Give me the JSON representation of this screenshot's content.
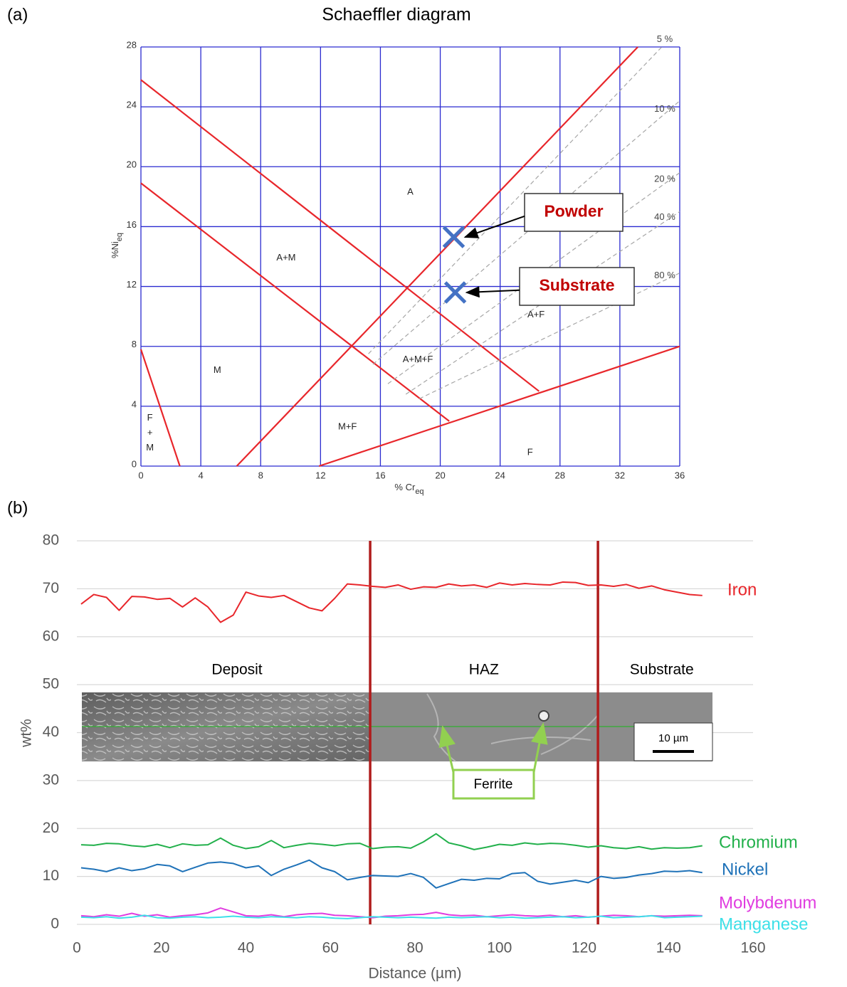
{
  "chart_data": [
    {
      "type": "line",
      "panel": "(a)",
      "title": "Schaeffler diagram",
      "x_label": "% Cr",
      "x_label_sub": "eq",
      "y_label": "%Ni",
      "y_label_sub": "eq",
      "xlim": [
        0,
        36
      ],
      "ylim": [
        0,
        28
      ],
      "xticks": [
        0,
        4,
        8,
        12,
        16,
        20,
        24,
        28,
        32,
        36
      ],
      "yticks": [
        0,
        4,
        8,
        12,
        16,
        20,
        24,
        28
      ],
      "grid": "both",
      "grid_color": "#2a2ad0",
      "series": [
        {
          "color": "#e8262b",
          "x": [
            0,
            26.6
          ],
          "values": [
            25.8,
            5.0
          ]
        },
        {
          "color": "#e8262b",
          "x": [
            0,
            20.6
          ],
          "values": [
            18.9,
            3.0
          ]
        },
        {
          "color": "#e8262b",
          "x": [
            6.4,
            33.2
          ],
          "values": [
            0,
            28
          ]
        },
        {
          "color": "#e8262b",
          "x": [
            11.9,
            36
          ],
          "values": [
            0,
            8.0
          ]
        },
        {
          "color": "#e8262b",
          "x": [
            0,
            2.6
          ],
          "values": [
            7.8,
            0
          ]
        },
        {
          "name": "5 %",
          "color": "#a6a6a6",
          "dash": true,
          "x": [
            15.2,
            34.8
          ],
          "values": [
            7.5,
            28
          ]
        },
        {
          "name": "10 %",
          "color": "#a6a6a6",
          "dash": true,
          "x": [
            15.5,
            36
          ],
          "values": [
            6.8,
            24.4
          ]
        },
        {
          "name": "20 %",
          "color": "#a6a6a6",
          "dash": true,
          "x": [
            16.5,
            36
          ],
          "values": [
            5.5,
            19.6
          ]
        },
        {
          "name": "40 %",
          "color": "#a6a6a6",
          "dash": true,
          "x": [
            17.7,
            36
          ],
          "values": [
            4.8,
            17.0
          ]
        },
        {
          "name": "80 %",
          "color": "#a6a6a6",
          "dash": true,
          "x": [
            18.6,
            36
          ],
          "values": [
            4.5,
            12.9
          ]
        }
      ],
      "points": [
        {
          "name": "Powder",
          "x": 20.9,
          "y": 15.3
        },
        {
          "name": "Substrate",
          "x": 21.0,
          "y": 11.6
        }
      ],
      "point_color": "#4472c4",
      "annotations": [
        {
          "text": "A",
          "x": 18.0,
          "y": 18.3
        },
        {
          "text": "A+M",
          "x": 9.7,
          "y": 13.9
        },
        {
          "text": "M",
          "x": 5.1,
          "y": 6.4
        },
        {
          "text": "F",
          "x": 0.6,
          "y": 3.2
        },
        {
          "text": "+",
          "x": 0.6,
          "y": 2.2
        },
        {
          "text": "M",
          "x": 0.6,
          "y": 1.2
        },
        {
          "text": "M+F",
          "x": 13.8,
          "y": 2.6
        },
        {
          "text": "A+M+F",
          "x": 18.5,
          "y": 7.1
        },
        {
          "text": "A+F",
          "x": 26.4,
          "y": 10.1
        },
        {
          "text": "F",
          "x": 26.0,
          "y": 0.9
        }
      ]
    },
    {
      "type": "line",
      "panel": "(b)",
      "x_label": "Distance (µm)",
      "y_label": "wt%",
      "xlim": [
        0,
        160
      ],
      "ylim": [
        0,
        80
      ],
      "xticks": [
        0,
        20,
        40,
        60,
        80,
        100,
        120,
        140,
        160
      ],
      "yticks": [
        0,
        10,
        20,
        30,
        40,
        50,
        60,
        70,
        80
      ],
      "grid": "y",
      "grid_color": "#d9d9d9",
      "x": [
        1,
        4,
        7,
        10,
        13,
        16,
        19,
        22,
        25,
        28,
        31,
        34,
        37,
        40,
        43,
        46,
        49,
        52,
        55,
        58,
        61,
        64,
        67,
        70,
        73,
        76,
        79,
        82,
        85,
        88,
        91,
        94,
        97,
        100,
        103,
        106,
        109,
        112,
        115,
        118,
        121,
        124,
        127,
        130,
        133,
        136,
        139,
        142,
        145,
        148
      ],
      "series": [
        {
          "name": "Iron",
          "color": "#e8262b",
          "values": [
            66.8,
            68.8,
            68.2,
            65.5,
            68.4,
            68.3,
            67.8,
            68.0,
            66.2,
            68.1,
            66.2,
            63.0,
            64.5,
            69.3,
            68.5,
            68.2,
            68.6,
            67.3,
            66.0,
            65.4,
            68.0,
            71.0,
            70.8,
            70.5,
            70.3,
            70.8,
            69.9,
            70.4,
            70.3,
            71.0,
            70.6,
            70.8,
            70.3,
            71.2,
            70.8,
            71.1,
            70.9,
            70.8,
            71.4,
            71.3,
            70.7,
            70.8,
            70.5,
            70.9,
            70.1,
            70.6,
            69.8,
            69.3,
            68.8,
            68.6
          ]
        },
        {
          "name": "Chromium",
          "color": "#22b04b",
          "values": [
            16.6,
            16.5,
            16.9,
            16.8,
            16.4,
            16.2,
            16.7,
            16.0,
            16.8,
            16.5,
            16.6,
            18.0,
            16.5,
            15.8,
            16.2,
            17.5,
            16.0,
            16.5,
            16.9,
            16.7,
            16.4,
            16.8,
            16.9,
            15.8,
            16.1,
            16.2,
            15.9,
            17.2,
            18.9,
            17.0,
            16.4,
            15.6,
            16.1,
            16.7,
            16.5,
            17.0,
            16.7,
            16.9,
            16.8,
            16.5,
            16.1,
            16.4,
            16.0,
            15.8,
            16.2,
            15.7,
            16.0,
            15.9,
            16.0,
            16.4
          ]
        },
        {
          "name": "Nickel",
          "color": "#1f72b8",
          "values": [
            11.8,
            11.5,
            11.0,
            11.8,
            11.2,
            11.6,
            12.5,
            12.2,
            11.0,
            11.9,
            12.8,
            13.0,
            12.7,
            11.8,
            12.2,
            10.2,
            11.5,
            12.4,
            13.4,
            11.8,
            11.0,
            9.3,
            9.8,
            10.2,
            10.1,
            10.0,
            10.6,
            9.8,
            7.6,
            8.5,
            9.4,
            9.2,
            9.6,
            9.5,
            10.6,
            10.8,
            9.0,
            8.4,
            8.8,
            9.2,
            8.7,
            10.0,
            9.6,
            9.8,
            10.3,
            10.6,
            11.1,
            11.0,
            11.2,
            10.8
          ]
        },
        {
          "name": "Molybdenum",
          "color": "#e03ce0",
          "values": [
            1.8,
            1.6,
            2.0,
            1.7,
            2.3,
            1.7,
            2.0,
            1.5,
            1.8,
            2.0,
            2.4,
            3.4,
            2.6,
            1.8,
            1.7,
            2.0,
            1.6,
            2.0,
            2.2,
            2.3,
            1.9,
            1.8,
            1.6,
            1.4,
            1.7,
            1.8,
            2.0,
            2.1,
            2.5,
            2.0,
            1.8,
            1.9,
            1.6,
            1.8,
            2.0,
            1.8,
            1.7,
            1.9,
            1.6,
            1.8,
            1.5,
            1.7,
            1.9,
            1.8,
            1.6,
            1.8,
            1.7,
            1.8,
            1.9,
            1.8
          ]
        },
        {
          "name": "Manganese",
          "color": "#3de0e8",
          "values": [
            1.5,
            1.4,
            1.6,
            1.3,
            1.5,
            1.9,
            1.4,
            1.3,
            1.5,
            1.6,
            1.4,
            1.5,
            1.7,
            1.5,
            1.4,
            1.6,
            1.5,
            1.4,
            1.6,
            1.5,
            1.3,
            1.2,
            1.4,
            1.6,
            1.5,
            1.4,
            1.5,
            1.4,
            1.3,
            1.5,
            1.4,
            1.5,
            1.6,
            1.4,
            1.5,
            1.3,
            1.4,
            1.5,
            1.6,
            1.4,
            1.5,
            1.7,
            1.4,
            1.5,
            1.6,
            1.8,
            1.4,
            1.5,
            1.6,
            1.7
          ]
        }
      ],
      "boundaries": {
        "color": "#b01c1c",
        "x": [
          69.4,
          123.3
        ]
      },
      "annotations": [
        {
          "text": "Deposit",
          "x": 37.9,
          "y": 53
        },
        {
          "text": "HAZ",
          "x": 96.3,
          "y": 53
        },
        {
          "text": "Substrate",
          "x": 138.4,
          "y": 53
        }
      ],
      "scale_bar": "10 µm",
      "callout": "Ferrite"
    }
  ]
}
